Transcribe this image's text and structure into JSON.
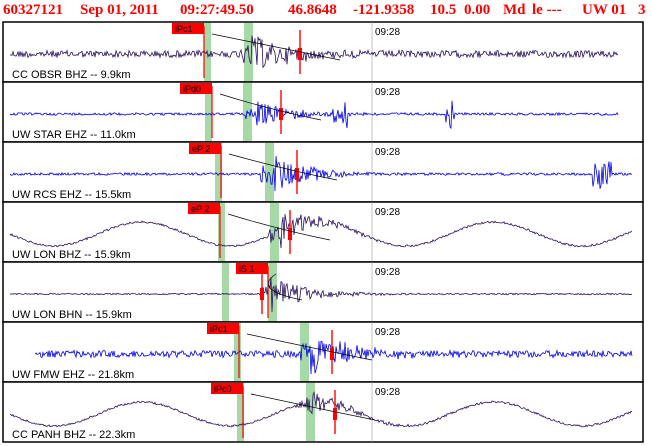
{
  "header": {
    "event_id": "60327121",
    "date": "Sep 01, 2011",
    "time": "09:27:49.50",
    "latitude": "46.8648",
    "longitude": "-121.9358",
    "depth": "10.5",
    "magnitude": "0.00",
    "mag_type": "Md",
    "flags": "le ---",
    "network": "UW 01",
    "extra": "3"
  },
  "time_tick_label": "09:28",
  "colors": {
    "header_text": "#ff0000",
    "pick_flag": "#ff0000",
    "blue_trace": "#0000ee",
    "dark_trace": "#2a1060",
    "arrival_band": "#8fd08f",
    "panel_border": "#000000"
  },
  "channels": [
    {
      "station_label": "CC OBSR BHZ -- 9.9km",
      "pick": "iPc1",
      "trace_color": "dark",
      "waveform": "noisy"
    },
    {
      "station_label": "UW STAR EHZ -- 11.0km",
      "pick": "iPd0",
      "trace_color": "blue",
      "waveform": "burst"
    },
    {
      "station_label": "UW RCS EHZ -- 15.5km",
      "pick": "eP 2",
      "trace_color": "blue",
      "waveform": "burst"
    },
    {
      "station_label": "UW LON BHZ -- 15.9km",
      "pick": "eP 2",
      "trace_color": "dark",
      "waveform": "wavy"
    },
    {
      "station_label": "UW LON BHN -- 15.9km",
      "pick": "iS 1",
      "trace_color": "dark",
      "waveform": "flat"
    },
    {
      "station_label": "UW FMW EHZ -- 21.8km",
      "pick": "iPc1",
      "trace_color": "blue",
      "waveform": "noisy"
    },
    {
      "station_label": "CC PANH BHZ -- 22.3km",
      "pick": "iPc0",
      "trace_color": "dark",
      "waveform": "wavy"
    }
  ]
}
